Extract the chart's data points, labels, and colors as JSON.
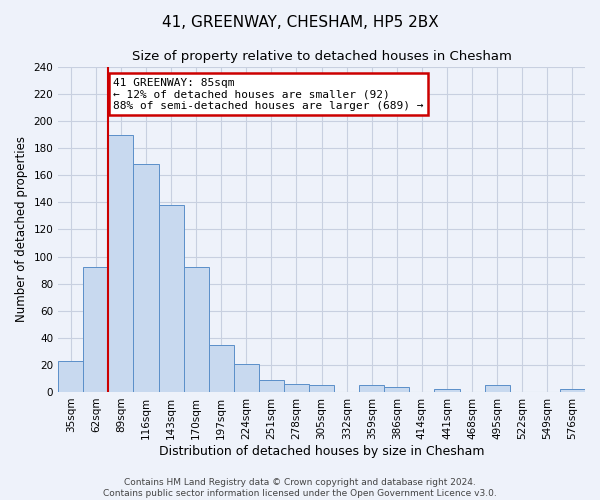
{
  "title": "41, GREENWAY, CHESHAM, HP5 2BX",
  "subtitle": "Size of property relative to detached houses in Chesham",
  "xlabel": "Distribution of detached houses by size in Chesham",
  "ylabel": "Number of detached properties",
  "bar_labels": [
    "35sqm",
    "62sqm",
    "89sqm",
    "116sqm",
    "143sqm",
    "170sqm",
    "197sqm",
    "224sqm",
    "251sqm",
    "278sqm",
    "305sqm",
    "332sqm",
    "359sqm",
    "386sqm",
    "414sqm",
    "441sqm",
    "468sqm",
    "495sqm",
    "522sqm",
    "549sqm",
    "576sqm"
  ],
  "bar_values": [
    23,
    92,
    190,
    168,
    138,
    92,
    35,
    21,
    9,
    6,
    5,
    0,
    5,
    4,
    0,
    2,
    0,
    5,
    0,
    0,
    2
  ],
  "bar_color": "#c8d9ef",
  "bar_edge_color": "#5b8fc9",
  "vline_color": "#cc0000",
  "annotation_line1": "41 GREENWAY: 85sqm",
  "annotation_line2": "← 12% of detached houses are smaller (92)",
  "annotation_line3": "88% of semi-detached houses are larger (689) →",
  "annotation_box_color": "#ffffff",
  "annotation_box_edge_color": "#cc0000",
  "ylim": [
    0,
    240
  ],
  "yticks": [
    0,
    20,
    40,
    60,
    80,
    100,
    120,
    140,
    160,
    180,
    200,
    220,
    240
  ],
  "footer1": "Contains HM Land Registry data © Crown copyright and database right 2024.",
  "footer2": "Contains public sector information licensed under the Open Government Licence v3.0.",
  "background_color": "#eef2fa",
  "grid_color": "#c8d0e0",
  "title_fontsize": 11,
  "subtitle_fontsize": 9.5,
  "xlabel_fontsize": 9,
  "ylabel_fontsize": 8.5,
  "tick_fontsize": 7.5,
  "footer_fontsize": 6.5,
  "annotation_fontsize": 8
}
